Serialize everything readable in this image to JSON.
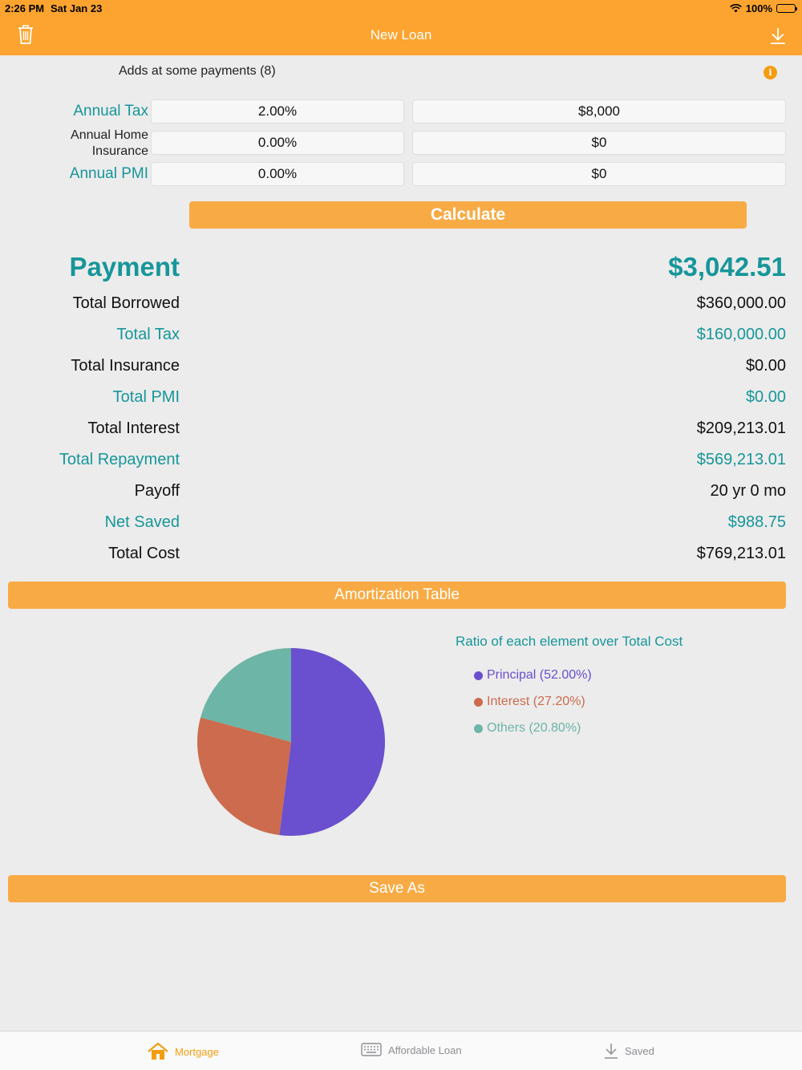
{
  "status_bar": {
    "time": "2:26 PM",
    "date": "Sat Jan 23",
    "battery": "100%"
  },
  "nav": {
    "title": "New Loan",
    "left_icon": "trash-icon",
    "right_icon": "download-icon"
  },
  "adds": {
    "label": "Adds at some payments (8)",
    "info_icon": "info-icon",
    "info_glyph": "i"
  },
  "fields": [
    {
      "label": "Annual Tax",
      "percent": "2.00%",
      "amount": "$8,000"
    },
    {
      "label": "Annual Home Insurance",
      "percent": "0.00%",
      "amount": "$0"
    },
    {
      "label": "Annual PMI",
      "percent": "0.00%",
      "amount": "$0"
    }
  ],
  "calculate_label": "Calculate",
  "results": {
    "payment": {
      "label": "Payment",
      "value": "$3,042.51"
    },
    "total_borrowed": {
      "label": "Total Borrowed",
      "value": "$360,000.00"
    },
    "total_tax": {
      "label": "Total Tax",
      "value": "$160,000.00"
    },
    "total_insurance": {
      "label": "Total Insurance",
      "value": "$0.00"
    },
    "total_pmi": {
      "label": "Total PMI",
      "value": "$0.00"
    },
    "total_interest": {
      "label": "Total Interest",
      "value": "$209,213.01"
    },
    "total_repayment": {
      "label": "Total Repayment",
      "value": "$569,213.01"
    },
    "payoff": {
      "label": "Payoff",
      "value": "20 yr 0 mo"
    },
    "net_saved": {
      "label": "Net Saved",
      "value": "$988.75"
    },
    "total_cost": {
      "label": "Total Cost",
      "value": "$769,213.01"
    }
  },
  "amortization_label": "Amortization Table",
  "save_as_label": "Save As",
  "chart_data": {
    "type": "pie",
    "title": "Ratio of each element over Total Cost",
    "slices": [
      {
        "label": "Principal (52.00%)",
        "value": 52.0,
        "color": "#6a4fcf"
      },
      {
        "label": "Interest (27.20%)",
        "value": 27.2,
        "color": "#cc6b4d"
      },
      {
        "label": "Others (20.80%)",
        "value": 20.8,
        "color": "#6db5a6"
      }
    ],
    "legend_position": "right"
  },
  "tabs": [
    {
      "label": "Mortgage",
      "icon": "home-icon",
      "active": true
    },
    {
      "label": "Affordable Loan",
      "icon": "keyboard-icon",
      "active": false
    },
    {
      "label": "Saved",
      "icon": "download-icon",
      "active": false
    }
  ],
  "colors": {
    "accent": "#fca42f",
    "button": "#f8ab45",
    "teal": "#17969a"
  }
}
